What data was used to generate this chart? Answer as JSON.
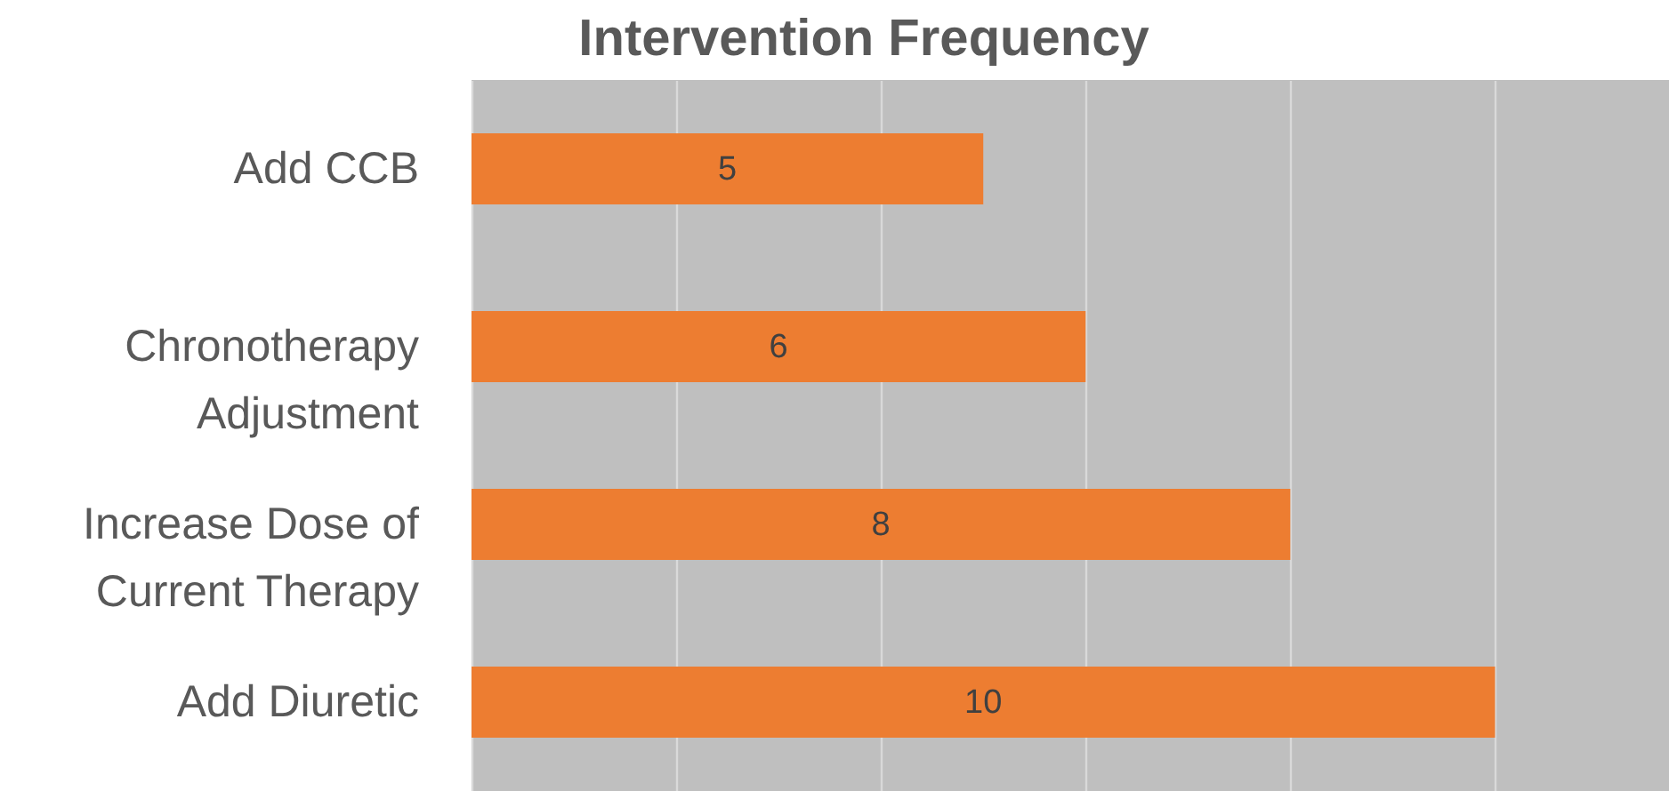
{
  "chart_data": {
    "type": "bar",
    "orientation": "horizontal",
    "title": "Intervention Frequency",
    "categories": [
      "Add CCB",
      "Chronotherapy Adjustment",
      "Increase Dose of Current Therapy",
      "Add Diuretic"
    ],
    "values": [
      5,
      6,
      8,
      10
    ],
    "color": "#ed7d31",
    "data_labels": true,
    "xlim": [
      0,
      11.7
    ],
    "xticks": [
      {
        "value": 0,
        "label": null
      },
      {
        "value": 2,
        "label": null
      },
      {
        "value": 4,
        "label": null
      },
      {
        "value": 6,
        "label": null
      },
      {
        "value": 8,
        "label": null
      },
      {
        "value": 10,
        "label": null
      }
    ],
    "grid": "x",
    "tick_labels": "y"
  }
}
